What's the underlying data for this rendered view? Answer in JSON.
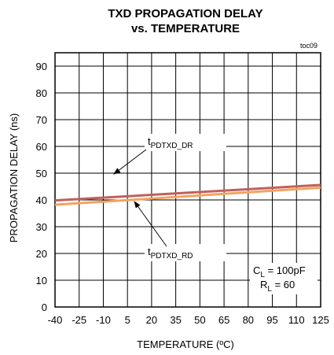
{
  "chart_data": {
    "type": "line",
    "title_line1": "TXD PROPAGATION DELAY",
    "title_line2": "vs. TEMPERATURE",
    "figure_tag": "toc09",
    "xlabel": "TEMPERATURE (ºC)",
    "ylabel": "PROPAGATION DELAY (ns)",
    "xlim": [
      -40,
      125
    ],
    "ylim": [
      0,
      95
    ],
    "x_ticks": [
      -40,
      -25,
      -10,
      5,
      20,
      35,
      50,
      65,
      80,
      95,
      110,
      125
    ],
    "y_ticks": [
      0,
      10,
      20,
      30,
      40,
      50,
      60,
      70,
      80,
      90
    ],
    "grid": true,
    "series": [
      {
        "name_main": "t",
        "name_sub": "PDTXD_DR",
        "color": "#c0605c",
        "x": [
          -40,
          125
        ],
        "y": [
          39.8,
          45.6
        ]
      },
      {
        "name_main": "t",
        "name_sub": "PDTXD_RD",
        "color": "#f2a360",
        "x": [
          -40,
          125
        ],
        "y": [
          38.2,
          44.6
        ]
      }
    ],
    "conditions": [
      {
        "main": "C",
        "sub": "L",
        "rest": " = 100pF"
      },
      {
        "main": "R",
        "sub": "L",
        "rest": " = 60"
      }
    ]
  }
}
